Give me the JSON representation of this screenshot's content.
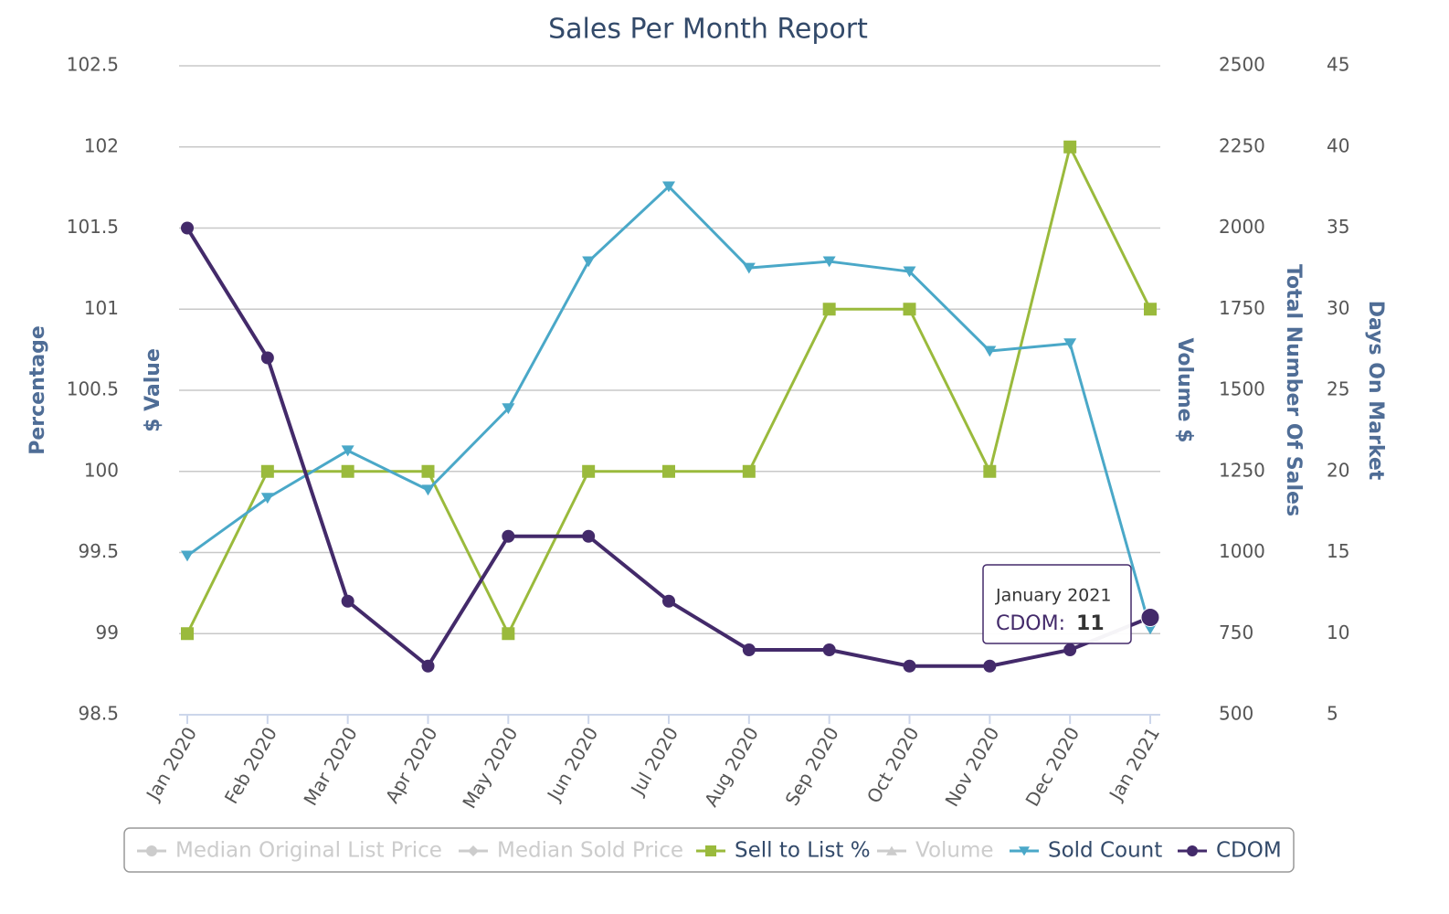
{
  "chart_data": {
    "type": "line",
    "title": "Sales Per Month Report",
    "categories": [
      "Jan 2020",
      "Feb 2020",
      "Mar 2020",
      "Apr 2020",
      "May 2020",
      "Jun 2020",
      "Jul 2020",
      "Aug 2020",
      "Sep 2020",
      "Oct 2020",
      "Nov 2020",
      "Dec 2020",
      "Jan 2021"
    ],
    "y_label": "Percentage",
    "y_label_2": "$ Value",
    "y2_label_2": "Volume $",
    "y2_label": "Total Number Of Sales",
    "y3_label": "Days On Market",
    "ylim": [
      98.5,
      102.5
    ],
    "yticks": [
      98.5,
      99,
      99.5,
      100,
      100.5,
      101,
      101.5,
      102,
      102.5
    ],
    "y2lim": [
      500,
      2500
    ],
    "y2ticks": [
      500,
      750,
      1000,
      1250,
      1500,
      1750,
      2000,
      2250,
      2500
    ],
    "y3lim": [
      5,
      45
    ],
    "y3ticks": [
      5,
      10,
      15,
      20,
      25,
      30,
      35,
      40,
      45
    ],
    "grid": true,
    "legend": "bottom",
    "series": [
      {
        "name": "Median Original List Price",
        "color": "#cccccc",
        "marker": "circle",
        "visible": false
      },
      {
        "name": "Median Sold Price",
        "color": "#cccccc",
        "marker": "diamond",
        "visible": false
      },
      {
        "name": "Sell to List %",
        "color": "#9aba3c",
        "marker": "square",
        "visible": true,
        "axis": "y",
        "values": [
          99,
          100,
          100,
          100,
          99,
          100,
          100,
          100,
          101,
          101,
          100,
          102,
          101
        ]
      },
      {
        "name": "Volume",
        "color": "#cccccc",
        "marker": "triangle",
        "visible": false
      },
      {
        "name": "Sold Count",
        "color": "#4aa8c8",
        "marker": "triangle-down",
        "visible": true,
        "axis": "y2",
        "values": [
          990,
          1168,
          1314,
          1193,
          1444,
          1897,
          2128,
          1877,
          1897,
          1866,
          1621,
          1644,
          765
        ]
      },
      {
        "name": "CDOM",
        "color": "#432a6a",
        "marker": "circle",
        "visible": true,
        "axis": "y3",
        "values": [
          35,
          27,
          12,
          8,
          16,
          16,
          12,
          9,
          9,
          8,
          8,
          9,
          11
        ]
      }
    ],
    "tooltip": {
      "title": "January 2021",
      "label": "CDOM:"
    }
  }
}
